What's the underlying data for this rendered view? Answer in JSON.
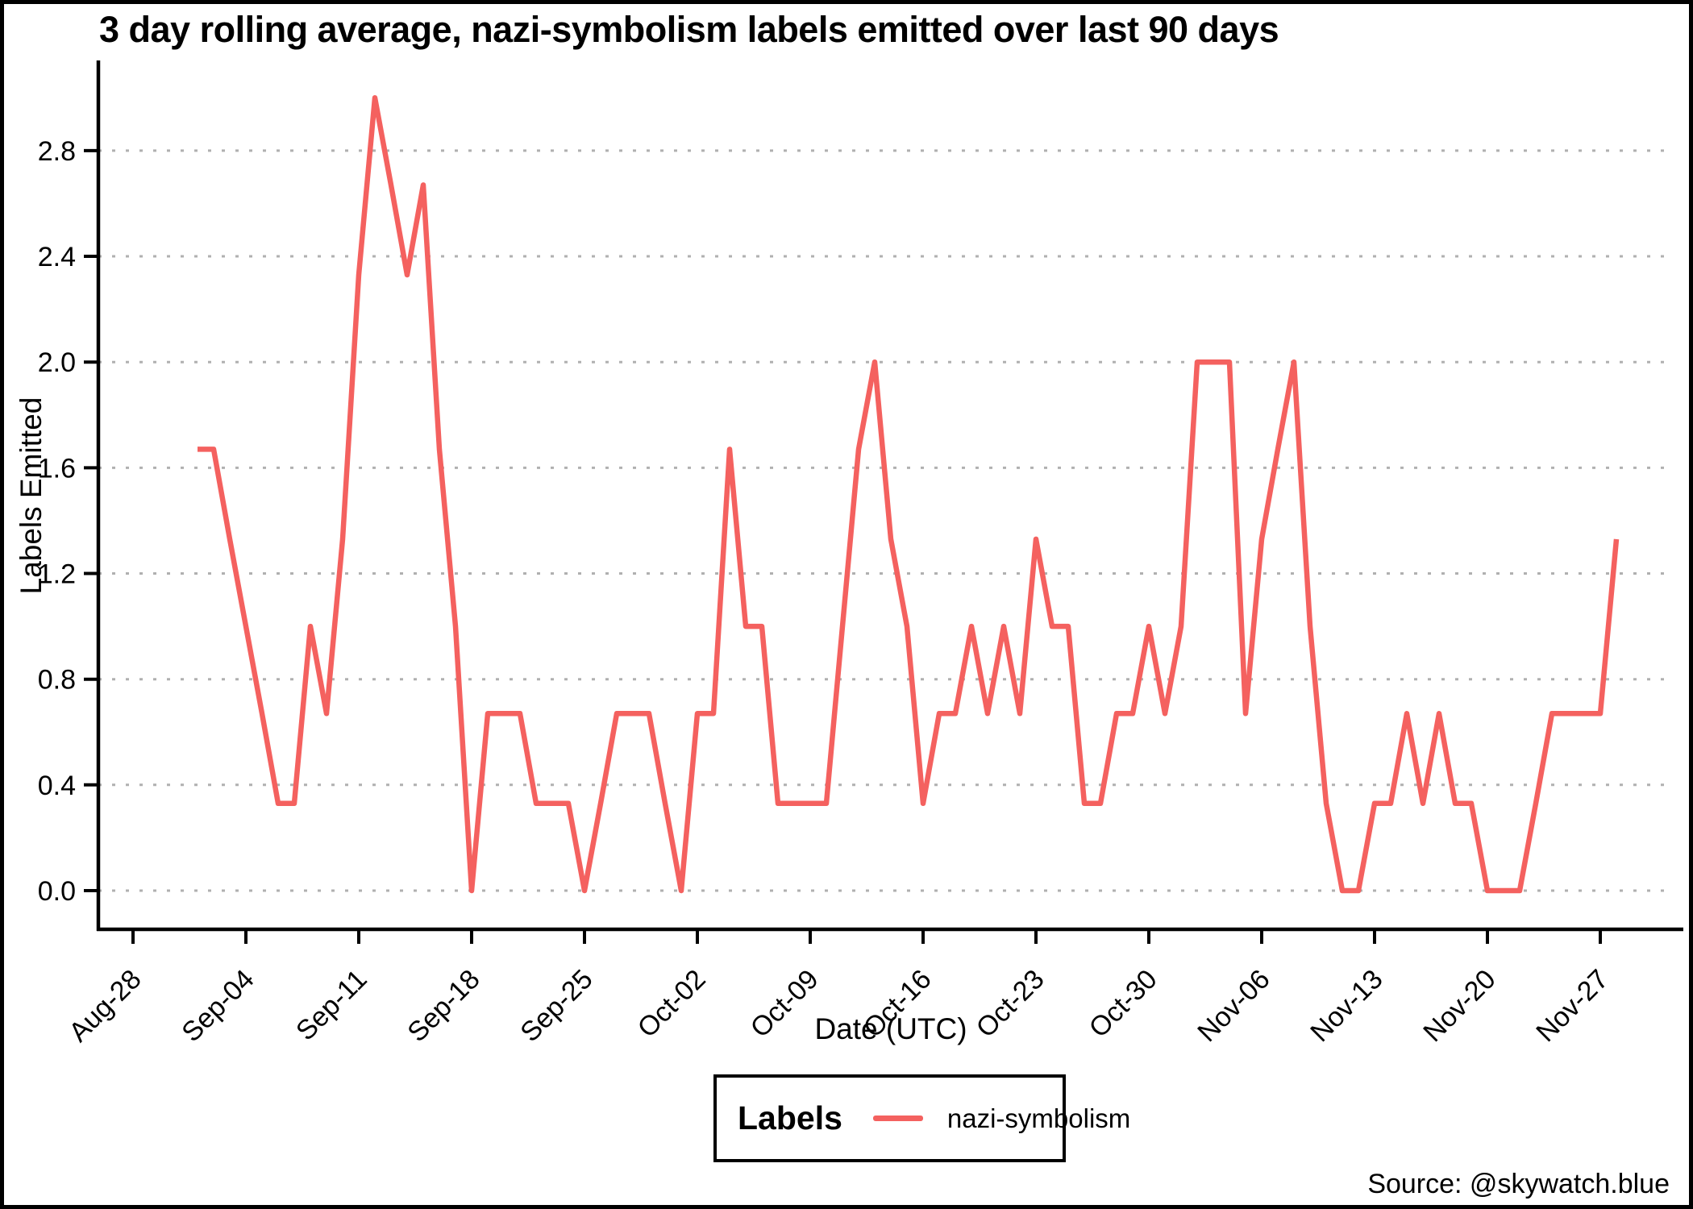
{
  "title": "3 day rolling average, nazi-symbolism labels emitted over last 90 days",
  "axes": {
    "x_label": "Date (UTC)",
    "y_label": "Labels Emitted"
  },
  "legend": {
    "title": "Labels",
    "series_label": "nazi-symbolism"
  },
  "source": "Source: @skywatch.blue",
  "colors": {
    "line": "#f4615f",
    "grid": "#b0b0b0",
    "axis": "#000000",
    "background": "#ffffff"
  },
  "chart_data": {
    "type": "line",
    "title": "3 day rolling average, nazi-symbolism labels emitted over last 90 days",
    "xlabel": "Date (UTC)",
    "ylabel": "Labels Emitted",
    "ylim": [
      0,
      3.05
    ],
    "grid": "horizontal-dashed",
    "legend_position": "bottom-center",
    "y_tick_values": [
      0.0,
      0.4,
      0.8,
      1.2,
      1.6,
      2.0,
      2.4,
      2.8
    ],
    "y_tick_labels": [
      "0.0",
      "0.4",
      "0.8",
      "1.2",
      "1.6",
      "2.0",
      "2.4",
      "2.8"
    ],
    "x_tick_labels": [
      "Aug-28",
      "Sep-04",
      "Sep-11",
      "Sep-18",
      "Sep-25",
      "Oct-02",
      "Oct-09",
      "Oct-16",
      "Oct-23",
      "Oct-30",
      "Nov-06",
      "Nov-13",
      "Nov-20",
      "Nov-27"
    ],
    "series": [
      {
        "name": "nazi-symbolism",
        "x": [
          "Sep-01",
          "Sep-02",
          "Sep-03",
          "Sep-04",
          "Sep-05",
          "Sep-06",
          "Sep-07",
          "Sep-08",
          "Sep-09",
          "Sep-10",
          "Sep-11",
          "Sep-12",
          "Sep-13",
          "Sep-14",
          "Sep-15",
          "Sep-16",
          "Sep-17",
          "Sep-18",
          "Sep-19",
          "Sep-20",
          "Sep-21",
          "Sep-22",
          "Sep-23",
          "Sep-24",
          "Sep-25",
          "Sep-26",
          "Sep-27",
          "Sep-28",
          "Sep-29",
          "Sep-30",
          "Oct-01",
          "Oct-02",
          "Oct-03",
          "Oct-04",
          "Oct-05",
          "Oct-06",
          "Oct-07",
          "Oct-08",
          "Oct-09",
          "Oct-10",
          "Oct-11",
          "Oct-12",
          "Oct-13",
          "Oct-14",
          "Oct-15",
          "Oct-16",
          "Oct-17",
          "Oct-18",
          "Oct-19",
          "Oct-20",
          "Oct-21",
          "Oct-22",
          "Oct-23",
          "Oct-24",
          "Oct-25",
          "Oct-26",
          "Oct-27",
          "Oct-28",
          "Oct-29",
          "Oct-30",
          "Oct-31",
          "Nov-01",
          "Nov-02",
          "Nov-03",
          "Nov-04",
          "Nov-05",
          "Nov-06",
          "Nov-07",
          "Nov-08",
          "Nov-09",
          "Nov-10",
          "Nov-11",
          "Nov-12",
          "Nov-13",
          "Nov-14",
          "Nov-15",
          "Nov-16",
          "Nov-17",
          "Nov-18",
          "Nov-19",
          "Nov-20",
          "Nov-21",
          "Nov-22",
          "Nov-23",
          "Nov-24",
          "Nov-25",
          "Nov-26",
          "Nov-27",
          "Nov-28"
        ],
        "values": [
          1.67,
          1.67,
          1.33,
          1.0,
          0.67,
          0.33,
          0.33,
          1.0,
          0.67,
          1.33,
          2.33,
          3.0,
          2.67,
          2.33,
          2.67,
          1.67,
          1.0,
          0.0,
          0.67,
          0.67,
          0.67,
          0.33,
          0.33,
          0.33,
          0.0,
          0.33,
          0.67,
          0.67,
          0.67,
          0.33,
          0.0,
          0.67,
          0.67,
          1.67,
          1.0,
          1.0,
          0.33,
          0.33,
          0.33,
          0.33,
          1.0,
          1.67,
          2.0,
          1.33,
          1.0,
          0.33,
          0.67,
          0.67,
          1.0,
          0.67,
          1.0,
          0.67,
          1.33,
          1.0,
          1.0,
          0.33,
          0.33,
          0.67,
          0.67,
          1.0,
          0.67,
          1.0,
          2.0,
          2.0,
          2.0,
          0.67,
          1.33,
          1.67,
          2.0,
          1.0,
          0.33,
          0.0,
          0.0,
          0.33,
          0.33,
          0.67,
          0.33,
          0.67,
          0.33,
          0.33,
          0.0,
          0.0,
          0.0,
          0.33,
          0.67,
          0.67,
          0.67,
          0.67,
          1.33
        ]
      }
    ]
  }
}
